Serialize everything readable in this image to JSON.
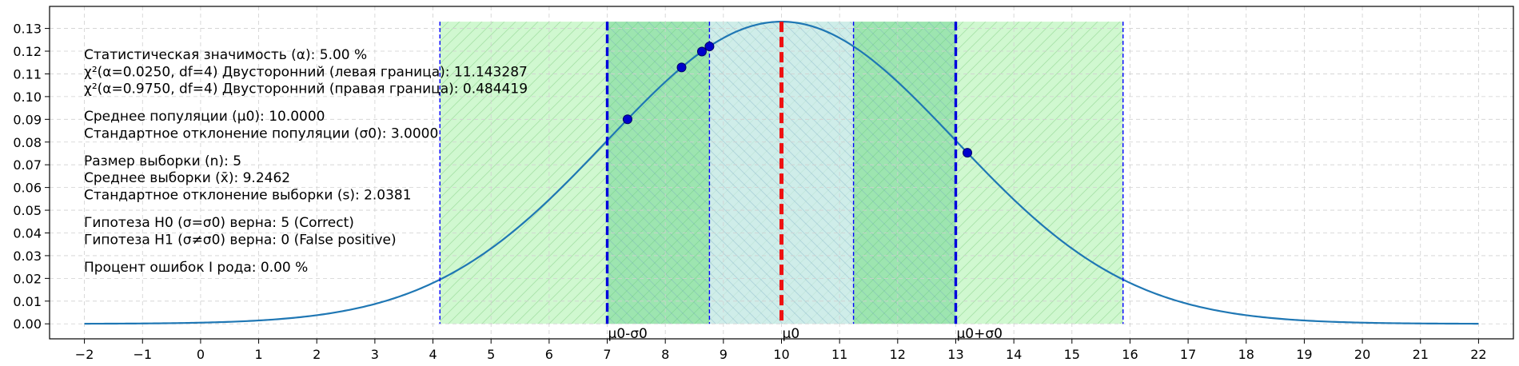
{
  "chart_data": {
    "type": "line",
    "title": "",
    "xlabel": "",
    "ylabel": "",
    "xlim": [
      -2.6,
      22.6
    ],
    "ylim": [
      -0.0066,
      0.1397
    ],
    "grid": true,
    "x_ticks": [
      -2,
      -1,
      0,
      1,
      2,
      3,
      4,
      5,
      6,
      7,
      8,
      9,
      10,
      11,
      12,
      13,
      14,
      15,
      16,
      17,
      18,
      19,
      20,
      21,
      22
    ],
    "x_tick_labels": [
      "−2",
      "−1",
      "0",
      "1",
      "2",
      "3",
      "4",
      "5",
      "6",
      "7",
      "8",
      "9",
      "10",
      "11",
      "12",
      "13",
      "14",
      "15",
      "16",
      "17",
      "18",
      "19",
      "20",
      "21",
      "22"
    ],
    "y_ticks": [
      0.0,
      0.01,
      0.02,
      0.03,
      0.04,
      0.05,
      0.06,
      0.07,
      0.08,
      0.09,
      0.1,
      0.11,
      0.12,
      0.13
    ],
    "y_tick_labels": [
      "0.00",
      "0.01",
      "0.02",
      "0.03",
      "0.04",
      "0.05",
      "0.06",
      "0.07",
      "0.08",
      "0.09",
      "0.10",
      "0.11",
      "0.12",
      "0.13"
    ],
    "curve": {
      "name": "",
      "distribution": "normal",
      "mean": 10.0,
      "std": 3.0,
      "x_range": [
        -2,
        22
      ],
      "color": "#1f77b4"
    },
    "regions": [
      {
        "x0": 4.12,
        "x1": 15.88,
        "color": "#90ee90",
        "hatch": "/"
      },
      {
        "x0": 7.0,
        "x1": 8.76,
        "color": "#5fcf8a",
        "hatch": "\\"
      },
      {
        "x0": 8.76,
        "x1": 11.24,
        "color": "#cfe8f3",
        "hatch": "\\"
      },
      {
        "x0": 11.24,
        "x1": 13.0,
        "color": "#5fcf8a",
        "hatch": "\\"
      }
    ],
    "vlines": [
      {
        "x": 4.12,
        "style": "thin-dashed",
        "color": "#0000ff"
      },
      {
        "x": 15.88,
        "style": "thin-dashed",
        "color": "#0000ff"
      },
      {
        "x": 8.76,
        "style": "thin-dashed",
        "color": "#0000ff"
      },
      {
        "x": 11.24,
        "style": "thin-dashed",
        "color": "#0000ff"
      },
      {
        "x": 7.0,
        "style": "thick-dashed",
        "color": "#0000dd",
        "label": "μ0-σ0"
      },
      {
        "x": 13.0,
        "style": "thick-dashed",
        "color": "#0000dd",
        "label": "μ0+σ0"
      },
      {
        "x": 10.0,
        "style": "thick-dashed",
        "color": "#ee1111",
        "label": "μ0"
      }
    ],
    "sample_points": {
      "color": "#0000cc",
      "x": [
        7.35,
        8.28,
        8.63,
        8.76,
        13.2
      ]
    },
    "annotations": [
      "Статистическая значимость (α): 5.00 %",
      "χ²(α=0.0250, df=4) Двусторонний (левая граница): 11.143287",
      "χ²(α=0.9750, df=4) Двусторонний (правая граница): 0.484419",
      "",
      "Среднее популяции (μ0): 10.0000",
      "Стандартное отклонение популяции (σ0): 3.0000",
      "",
      "Размер выборки (n): 5",
      "Среднее выборки (x̄): 9.2462",
      "Стандартное отклонение выборки (s): 2.0381",
      "",
      "Гипотеза H0 (σ=σ0) верна: 5 (Correct)",
      "Гипотеза H1 (σ≠σ0) верна: 0 (False positive)",
      "",
      "Процент ошибок I рода: 0.00 %"
    ]
  }
}
